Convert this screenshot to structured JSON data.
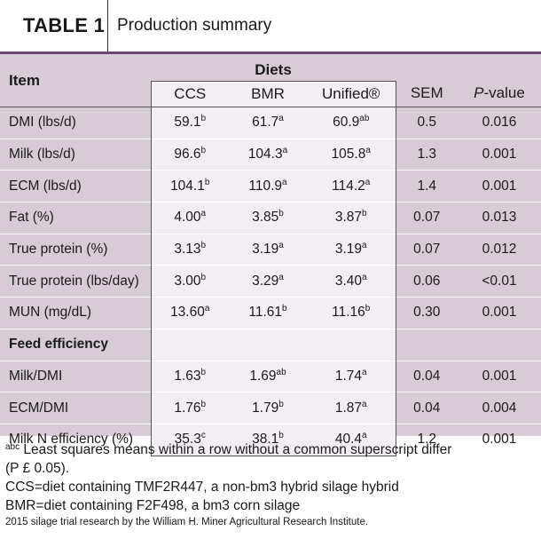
{
  "title": {
    "label": "TABLE 1",
    "caption": "Production summary"
  },
  "header": {
    "item": "Item",
    "diets": "Diets",
    "cols": [
      "CCS",
      "BMR",
      "Unified®"
    ],
    "sem": "SEM",
    "pvalue_p": "P",
    "pvalue_rest": "-value"
  },
  "rows": [
    {
      "label": "DMI (lbs/d)",
      "ccs": "59.1",
      "ccs_sup": "b",
      "bmr": "61.7",
      "bmr_sup": "a",
      "uni": "60.9",
      "uni_sup": "ab",
      "sem": "0.5",
      "p": "0.016"
    },
    {
      "label": "Milk (lbs/d)",
      "ccs": "96.6",
      "ccs_sup": "b",
      "bmr": "104.3",
      "bmr_sup": "a",
      "uni": "105.8",
      "uni_sup": "a",
      "sem": "1.3",
      "p": "0.001"
    },
    {
      "label": "ECM (lbs/d)",
      "ccs": "104.1",
      "ccs_sup": "b",
      "bmr": "110.9",
      "bmr_sup": "a",
      "uni": "114.2",
      "uni_sup": "a",
      "sem": "1.4",
      "p": "0.001"
    },
    {
      "label": "Fat (%)",
      "ccs": "4.00",
      "ccs_sup": "a",
      "bmr": "3.85",
      "bmr_sup": "b",
      "uni": "3.87",
      "uni_sup": "b",
      "sem": "0.07",
      "p": "0.013"
    },
    {
      "label": "True protein (%)",
      "ccs": "3.13",
      "ccs_sup": "b",
      "bmr": "3.19",
      "bmr_sup": "a",
      "uni": "3.19",
      "uni_sup": "a",
      "sem": "0.07",
      "p": "0.012"
    },
    {
      "label": "True protein (lbs/day)",
      "ccs": "3.00",
      "ccs_sup": "b",
      "bmr": "3.29",
      "bmr_sup": "a",
      "uni": "3.40",
      "uni_sup": "a",
      "sem": "0.06",
      "p": "<0.01"
    },
    {
      "label": "MUN (mg/dL)",
      "ccs": "13.60",
      "ccs_sup": "a",
      "bmr": "11.61",
      "bmr_sup": "b",
      "uni": "11.16",
      "uni_sup": "b",
      "sem": "0.30",
      "p": "0.001"
    }
  ],
  "section": "Feed efficiency",
  "rows2": [
    {
      "label": "Milk/DMI",
      "ccs": "1.63",
      "ccs_sup": "b",
      "bmr": "1.69",
      "bmr_sup": "ab",
      "uni": "1.74",
      "uni_sup": "a",
      "sem": "0.04",
      "p": "0.001"
    },
    {
      "label": "ECM/DMI",
      "ccs": "1.76",
      "ccs_sup": "b",
      "bmr": "1.79",
      "bmr_sup": "b",
      "uni": "1.87",
      "uni_sup": "a",
      "sem": "0.04",
      "p": "0.004"
    },
    {
      "label": "Milk N efficiency (%)",
      "ccs": "35.3",
      "ccs_sup": "c",
      "bmr": "38.1",
      "bmr_sup": "b",
      "uni": "40.4",
      "uni_sup": "a",
      "sem": "1.2",
      "p": "0.001"
    }
  ],
  "footer": {
    "sup": "abc",
    "line1": " Least squares means within a row without a common superscript differ",
    "line1b": "(P £ 0.05).",
    "line2": "CCS=diet containing TMF2R447, a non-bm3 hybrid silage hybrid",
    "line3": "BMR=diet containing F2F498, a bm3 corn silage",
    "line4": "2015 silage trial research by the William H. Miner Agricultural Research Institute."
  },
  "colors": {
    "header_band": "#d7ccd6",
    "rule": "#6b4a6d",
    "diet_col_bg": "#f3eef3"
  }
}
